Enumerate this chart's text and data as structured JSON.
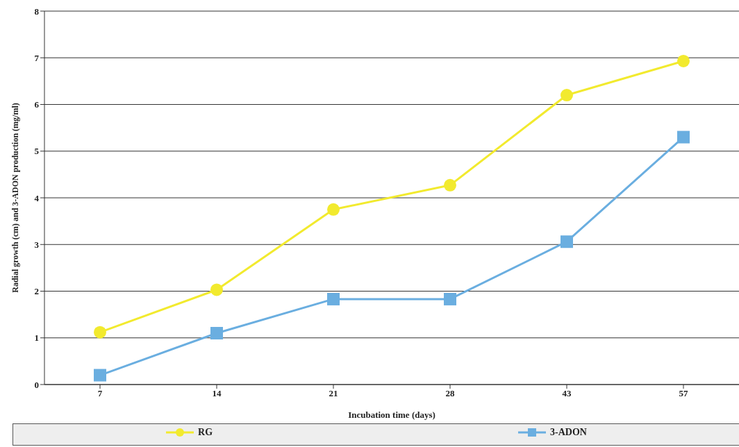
{
  "chart_data": {
    "type": "line",
    "xlabel": "Incubation time (days)",
    "ylabel": "Radial growth (cm) and 3-ADON production (mg/ml)",
    "categories": [
      "7",
      "14",
      "21",
      "28",
      "43",
      "57"
    ],
    "series": [
      {
        "name": "RG",
        "color": "#f2ea2e",
        "marker": "circle",
        "values": [
          1.12,
          2.03,
          3.75,
          4.27,
          6.2,
          6.93
        ]
      },
      {
        "name": "3-ADON",
        "color": "#6aaee0",
        "marker": "square",
        "values": [
          0.2,
          1.1,
          1.83,
          1.83,
          3.06,
          5.3
        ]
      }
    ],
    "ylim": [
      0,
      8
    ],
    "yticks": [
      0,
      1,
      2,
      3,
      4,
      5,
      6,
      7,
      8
    ],
    "grid": "y",
    "legend": "bottom",
    "line_style": "solid"
  }
}
